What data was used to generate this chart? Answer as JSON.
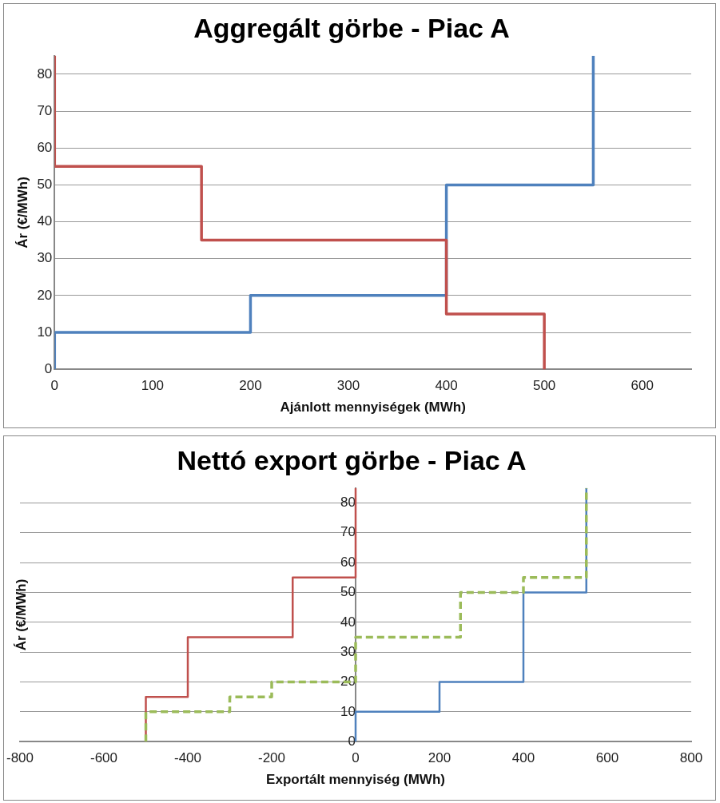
{
  "chart_data": [
    {
      "type": "line",
      "title": "Aggregált görbe - Piac A",
      "xlabel": "Ajánlott mennyiségek (MWh)",
      "ylabel": "Ár (€/MWh)",
      "xlim": [
        0,
        650
      ],
      "xticks": [
        0,
        100,
        200,
        300,
        400,
        500,
        600
      ],
      "ylim": [
        0,
        85
      ],
      "yticks": [
        0,
        10,
        20,
        30,
        40,
        50,
        60,
        70,
        80
      ],
      "grid": "y",
      "marker": "none",
      "series": [
        {
          "color": "#4f81bd",
          "line_style": "solid",
          "x": [
            0,
            0,
            200,
            200,
            400,
            400,
            550,
            550
          ],
          "values": [
            0,
            10,
            10,
            20,
            20,
            50,
            50,
            85
          ]
        },
        {
          "color": "#c0504d",
          "line_style": "solid",
          "x": [
            0,
            0,
            150,
            150,
            400,
            400,
            500,
            500
          ],
          "values": [
            85,
            55,
            55,
            35,
            35,
            15,
            15,
            0
          ]
        }
      ]
    },
    {
      "type": "line",
      "title": "Nettó export görbe - Piac A",
      "xlabel": "Exportált mennyiség (MWh)",
      "ylabel": "Ár (€/MWh)",
      "xlim": [
        -800,
        800
      ],
      "xticks": [
        -800,
        -600,
        -400,
        -200,
        0,
        200,
        400,
        600,
        800
      ],
      "ylim": [
        0,
        85
      ],
      "yticks": [
        0,
        10,
        20,
        30,
        40,
        50,
        60,
        70,
        80
      ],
      "grid": "y",
      "marker": "none",
      "series": [
        {
          "color": "#c0504d",
          "line_style": "solid",
          "x": [
            -500,
            -500,
            -400,
            -400,
            -150,
            -150,
            0,
            0
          ],
          "values": [
            0,
            15,
            15,
            35,
            35,
            55,
            55,
            85
          ]
        },
        {
          "color": "#4f81bd",
          "line_style": "solid",
          "x": [
            0,
            0,
            200,
            200,
            400,
            400,
            550,
            550
          ],
          "values": [
            0,
            10,
            10,
            20,
            20,
            50,
            50,
            85
          ]
        },
        {
          "color": "#9bbb59",
          "line_style": "dashed",
          "x": [
            -500,
            -500,
            -300,
            -300,
            -200,
            -200,
            0,
            0,
            250,
            250,
            400,
            400,
            550,
            550
          ],
          "values": [
            0,
            10,
            10,
            15,
            15,
            20,
            20,
            35,
            35,
            50,
            50,
            55,
            55,
            85
          ]
        }
      ]
    }
  ]
}
